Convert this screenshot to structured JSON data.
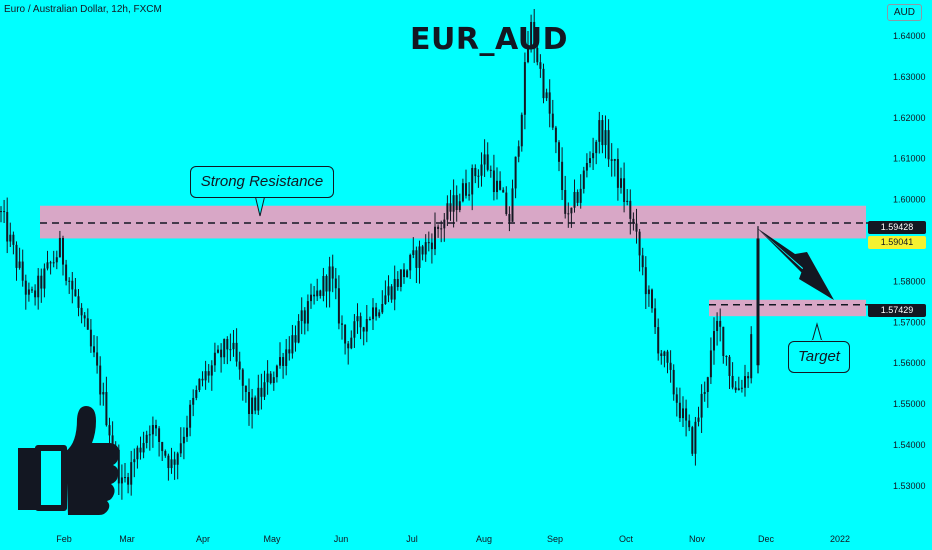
{
  "header": {
    "symbol_title": "Euro / Australian Dollar, 12h, FXCM",
    "title": "EUR_AUD",
    "currency": "AUD"
  },
  "annotations": {
    "resistance_label": "Strong Resistance",
    "target_label": "Target"
  },
  "price_tags": {
    "resistance": "1.59428",
    "current": "1.59041",
    "target": "1.57429"
  },
  "icons": [
    "thumbs-up-icon",
    "arrow-down-right-icon"
  ],
  "colors": {
    "background": "#00FFFF",
    "zone": "#D8A7C6",
    "candle": "#131722",
    "current_price_tag": "#F5F230"
  },
  "chart_data": {
    "type": "candlestick",
    "x_ticks": [
      "Feb",
      "Mar",
      "Apr",
      "May",
      "Jun",
      "Jul",
      "Aug",
      "Sep",
      "Oct",
      "Nov",
      "Dec",
      "2022"
    ],
    "y_ticks": [
      1.53,
      1.54,
      1.55,
      1.56,
      1.57,
      1.58,
      1.59,
      1.6,
      1.61,
      1.62,
      1.63,
      1.64
    ],
    "ylim": [
      1.5255,
      1.6455
    ],
    "grid": false,
    "approx_close_path": [
      [
        "Jan start",
        1.597
      ],
      [
        "Jan",
        1.575
      ],
      [
        "Feb",
        1.588
      ],
      [
        "Feb",
        1.56
      ],
      [
        "Mar",
        1.53
      ],
      [
        "Mar",
        1.545
      ],
      [
        "Apr",
        1.535
      ],
      [
        "Apr",
        1.555
      ],
      [
        "May",
        1.565
      ],
      [
        "May",
        1.548
      ],
      [
        "Jun",
        1.582
      ],
      [
        "Jun",
        1.565
      ],
      [
        "Jul",
        1.578
      ],
      [
        "Jul",
        1.59
      ],
      [
        "Aug",
        1.61
      ],
      [
        "Aug",
        1.595
      ],
      [
        "Aug",
        1.643
      ],
      [
        "Sep",
        1.618
      ],
      [
        "Sep",
        1.594
      ],
      [
        "Sep",
        1.618
      ],
      [
        "Oct",
        1.595
      ],
      [
        "Oct",
        1.565
      ],
      [
        "Nov",
        1.54
      ],
      [
        "Nov",
        1.57
      ],
      [
        "Nov",
        1.553
      ],
      [
        "Dec",
        1.558
      ],
      [
        "Dec",
        1.59
      ]
    ],
    "horizontal_levels": [
      {
        "label": "Strong Resistance",
        "value": 1.59428,
        "zone": [
          1.5905,
          1.5985
        ]
      },
      {
        "label": "Target",
        "value": 1.57429,
        "zone": [
          1.5715,
          1.5755
        ]
      }
    ]
  }
}
